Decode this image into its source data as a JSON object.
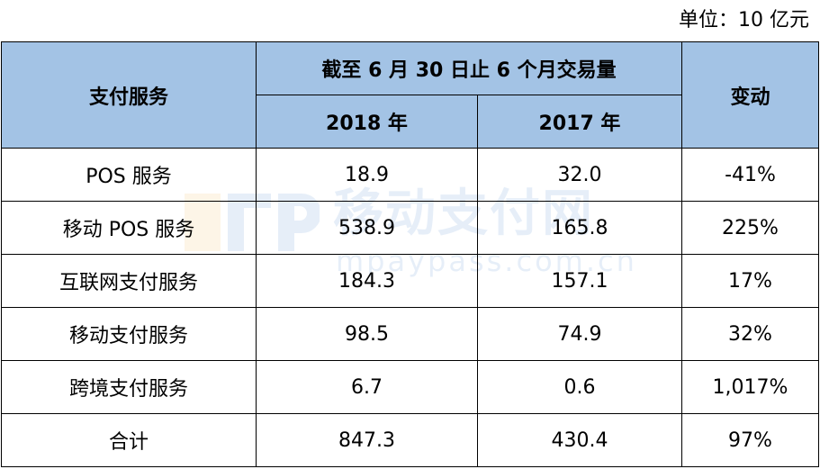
{
  "unit_note": "单位：10 亿元",
  "watermark": {
    "title": "移动支付网",
    "url": "mpaypass.com.cn",
    "color": "#1565c0"
  },
  "colors": {
    "header_bg": "#a3c3e5",
    "border": "#000000"
  },
  "table": {
    "header": {
      "service": "支付服务",
      "period": "截至 6 月 30 日止 6 个月交易量",
      "year_2018": "2018 年",
      "year_2017": "2017 年",
      "change": "变动"
    },
    "rows": [
      {
        "service": "POS 服务",
        "v2018": "18.9",
        "v2017": "32.0",
        "change": "-41%"
      },
      {
        "service": "移动 POS 服务",
        "v2018": "538.9",
        "v2017": "165.8",
        "change": "225%"
      },
      {
        "service": "互联网支付服务",
        "v2018": "184.3",
        "v2017": "157.1",
        "change": "17%"
      },
      {
        "service": "移动支付服务",
        "v2018": "98.5",
        "v2017": "74.9",
        "change": "32%"
      },
      {
        "service": "跨境支付服务",
        "v2018": "6.7",
        "v2017": "0.6",
        "change": "1,017%"
      },
      {
        "service": "合计",
        "v2018": "847.3",
        "v2017": "430.4",
        "change": "97%"
      }
    ]
  }
}
